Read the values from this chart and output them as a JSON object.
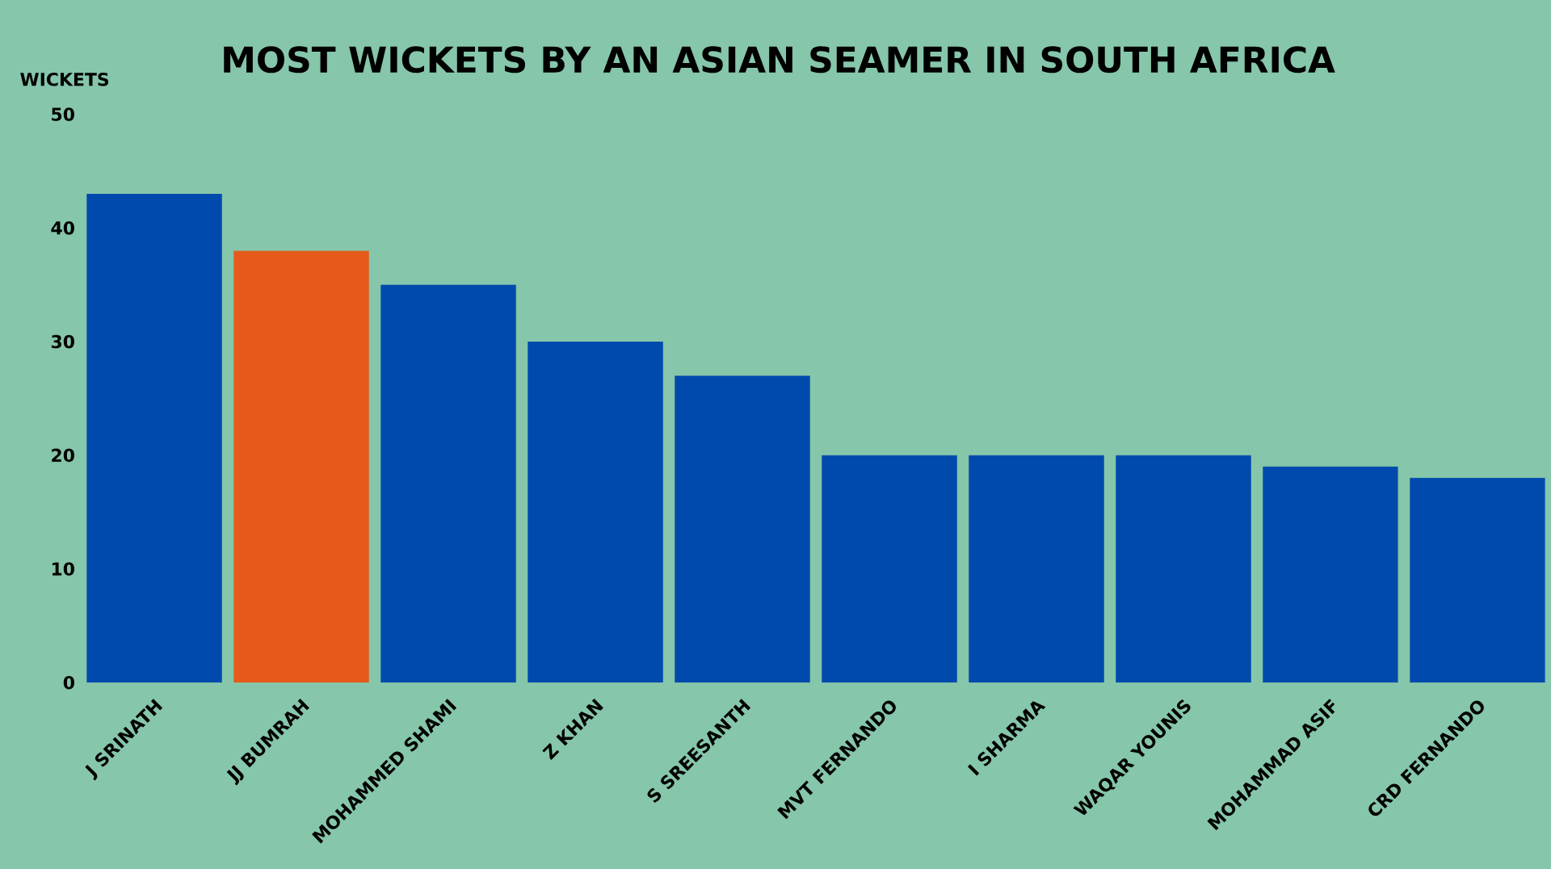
{
  "chart_data": {
    "type": "bar",
    "title": "MOST WICKETS BY AN ASIAN SEAMER IN SOUTH AFRICA",
    "ylabel": "WICKETS",
    "categories": [
      "J SRINATH",
      "JJ BUMRAH",
      "MOHAMMED SHAMI",
      "Z KHAN",
      "S SREESANTH",
      "MVT FERNANDO",
      "I SHARMA",
      "WAQAR YOUNIS",
      "MOHAMMAD ASIF",
      "CRD FERNANDO"
    ],
    "values": [
      43,
      38,
      35,
      30,
      27,
      20,
      20,
      20,
      19,
      18
    ],
    "colors": [
      "#004aad",
      "#e55a1b",
      "#004aad",
      "#004aad",
      "#004aad",
      "#004aad",
      "#004aad",
      "#004aad",
      "#004aad",
      "#004aad"
    ],
    "ylim": [
      0,
      50
    ],
    "yticks": [
      0,
      10,
      20,
      30,
      40,
      50
    ]
  }
}
